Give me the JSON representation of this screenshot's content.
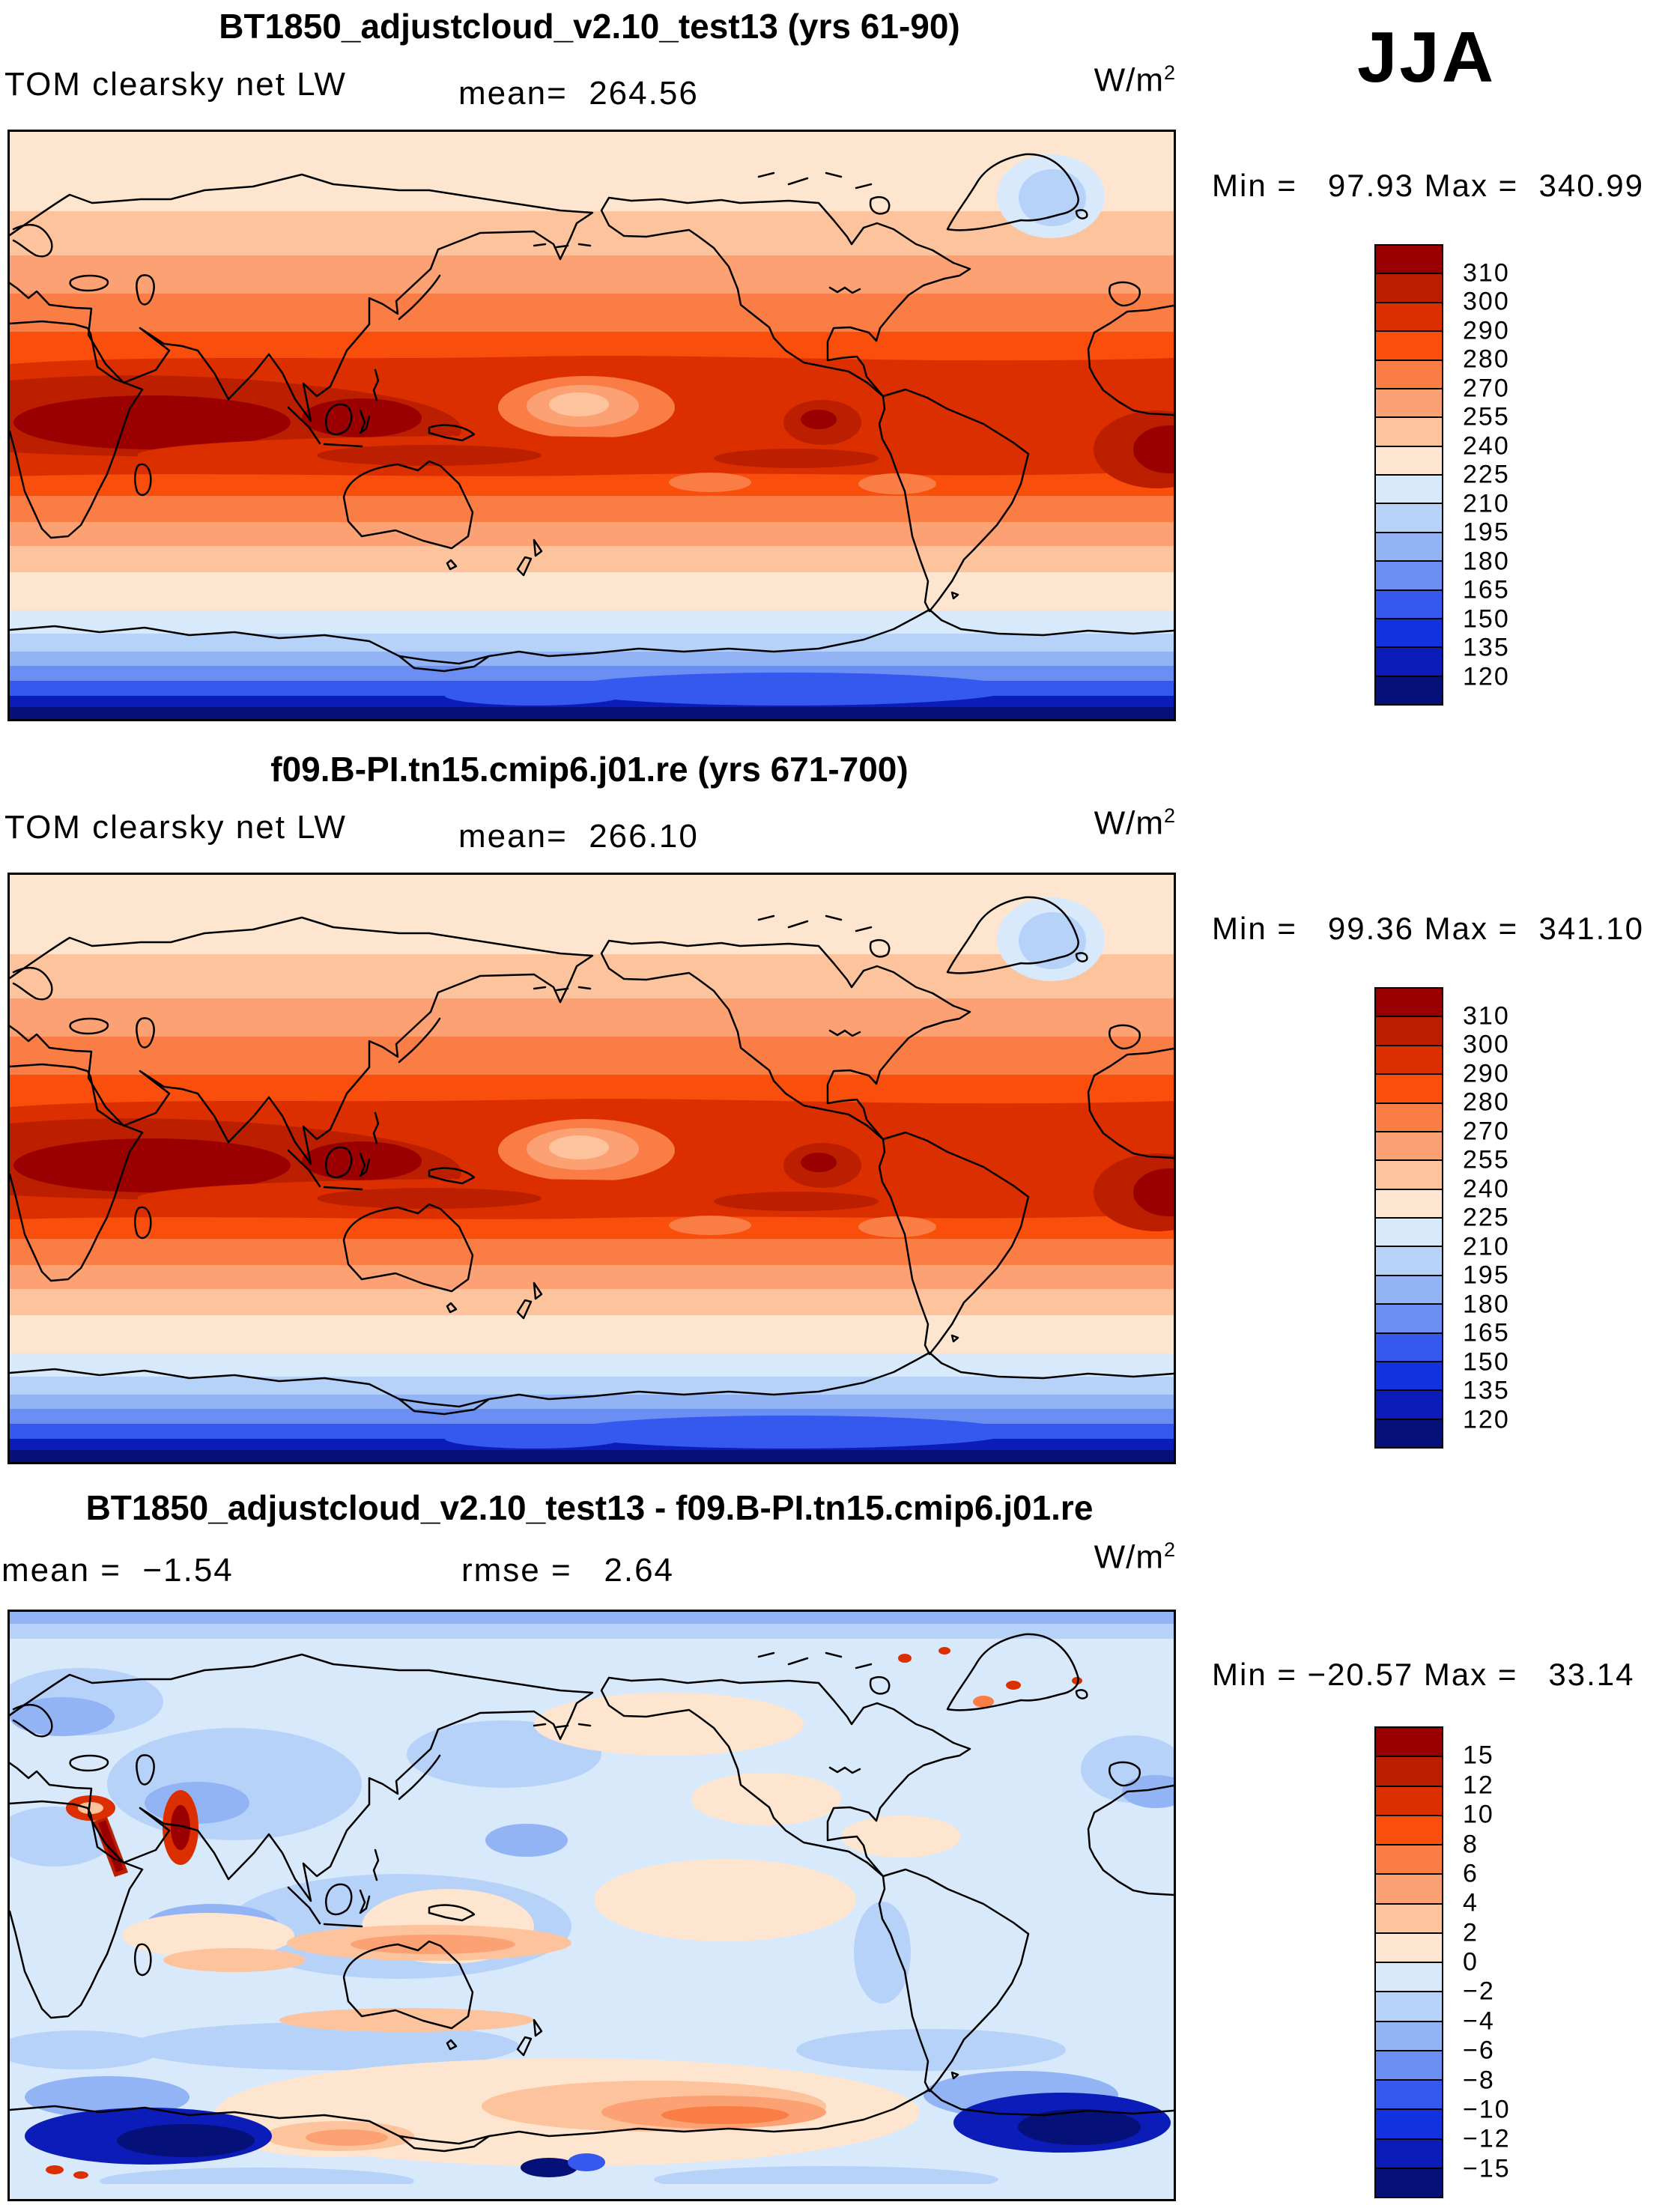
{
  "season_label": "JJA",
  "units": {
    "base": "W/m",
    "exp": "2"
  },
  "panels": [
    {
      "title": "BT1850_adjustcloud_v2.10_test13 (yrs 61-90)",
      "variable_label": "TOM clearsky net LW",
      "mean_line": "mean=  264.56",
      "minmax_line": "Min =   97.93 Max =  340.99"
    },
    {
      "title": "f09.B-PI.tn15.cmip6.j01.re (yrs 671-700)",
      "variable_label": "TOM clearsky net LW",
      "mean_line": "mean=  266.10",
      "minmax_line": "Min =   99.36 Max =  341.10"
    },
    {
      "title": "BT1850_adjustcloud_v2.10_test13 - f09.B-PI.tn15.cmip6.j01.re",
      "mean_line": "mean =  −1.54",
      "rmse_line": "rmse =   2.64",
      "minmax_line": "Min = −20.57 Max =   33.14"
    }
  ],
  "colorbars": {
    "absolute": {
      "labels": [
        "310",
        "300",
        "290",
        "280",
        "270",
        "255",
        "240",
        "225",
        "210",
        "195",
        "180",
        "165",
        "150",
        "135",
        "120"
      ],
      "colors": [
        "#9A0000",
        "#BC1F00",
        "#DC2F00",
        "#FA4E0C",
        "#FA7D45",
        "#FBA173",
        "#FCC39C",
        "#FDE5CF",
        "#D8E9FB",
        "#B6D2F9",
        "#92B4F5",
        "#6A8EF1",
        "#3558EE",
        "#1232E0",
        "#0B1CB8",
        "#051078"
      ]
    },
    "difference": {
      "labels": [
        "15",
        "12",
        "10",
        "8",
        "6",
        "4",
        "2",
        "0",
        "−2",
        "−4",
        "−6",
        "−8",
        "−10",
        "−12",
        "−15"
      ],
      "colors": [
        "#9A0000",
        "#BC1F00",
        "#DC2F00",
        "#FA4E0C",
        "#FA7D45",
        "#FBA173",
        "#FCC39C",
        "#FDE5CF",
        "#D8E9FB",
        "#B6D2F9",
        "#92B4F5",
        "#6A8EF1",
        "#3558EE",
        "#1232E0",
        "#0B1CB8",
        "#051078"
      ]
    }
  },
  "chart_data": [
    {
      "type": "filled-contour-map",
      "title": "BT1850_adjustcloud_v2.10_test13 (yrs 61-90)",
      "variable": "TOM clearsky net LW",
      "season": "JJA",
      "units": "W/m^2",
      "mean": 264.56,
      "min": 97.93,
      "max": 340.99,
      "levels": [
        120,
        135,
        150,
        165,
        180,
        195,
        210,
        225,
        240,
        255,
        270,
        280,
        290,
        300,
        310
      ],
      "palette_low_to_high": [
        "#051078",
        "#0B1CB8",
        "#1232E0",
        "#3558EE",
        "#6A8EF1",
        "#92B4F5",
        "#B6D2F9",
        "#D8E9FB",
        "#FDE5CF",
        "#FCC39C",
        "#FBA173",
        "#FA7D45",
        "#FA4E0C",
        "#DC2F00",
        "#BC1F00",
        "#9A0000"
      ],
      "projection": "global lat-lon, Pacific-centered, coastlines overlaid"
    },
    {
      "type": "filled-contour-map",
      "title": "f09.B-PI.tn15.cmip6.j01.re (yrs 671-700)",
      "variable": "TOM clearsky net LW",
      "season": "JJA",
      "units": "W/m^2",
      "mean": 266.1,
      "min": 99.36,
      "max": 341.1,
      "levels": [
        120,
        135,
        150,
        165,
        180,
        195,
        210,
        225,
        240,
        255,
        270,
        280,
        290,
        300,
        310
      ],
      "palette_low_to_high": [
        "#051078",
        "#0B1CB8",
        "#1232E0",
        "#3558EE",
        "#6A8EF1",
        "#92B4F5",
        "#B6D2F9",
        "#D8E9FB",
        "#FDE5CF",
        "#FCC39C",
        "#FBA173",
        "#FA7D45",
        "#FA4E0C",
        "#DC2F00",
        "#BC1F00",
        "#9A0000"
      ],
      "projection": "global lat-lon, Pacific-centered, coastlines overlaid"
    },
    {
      "type": "filled-contour-map",
      "title": "BT1850_adjustcloud_v2.10_test13 - f09.B-PI.tn15.cmip6.j01.re",
      "variable": "TOM clearsky net LW difference",
      "season": "JJA",
      "units": "W/m^2",
      "mean": -1.54,
      "rmse": 2.64,
      "min": -20.57,
      "max": 33.14,
      "levels": [
        -15,
        -12,
        -10,
        -8,
        -6,
        -4,
        -2,
        0,
        2,
        4,
        6,
        8,
        10,
        12,
        15
      ],
      "palette_low_to_high": [
        "#051078",
        "#0B1CB8",
        "#1232E0",
        "#3558EE",
        "#6A8EF1",
        "#92B4F5",
        "#B6D2F9",
        "#D8E9FB",
        "#FDE5CF",
        "#FCC39C",
        "#FBA173",
        "#FA7D45",
        "#FA4E0C",
        "#DC2F00",
        "#BC1F00",
        "#9A0000"
      ],
      "projection": "global lat-lon, Pacific-centered, coastlines overlaid"
    }
  ]
}
